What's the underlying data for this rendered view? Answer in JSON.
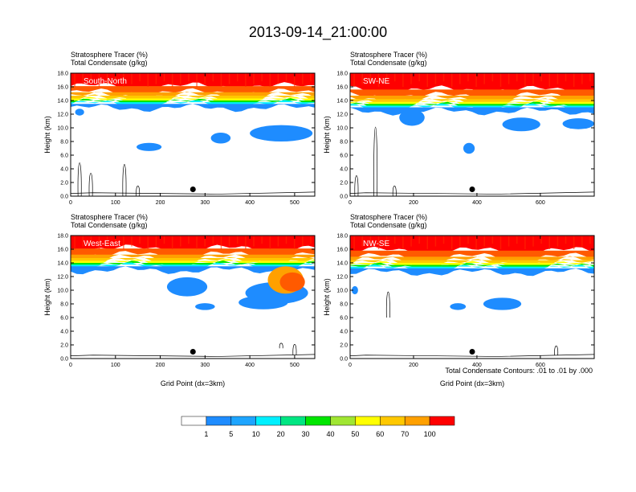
{
  "title": "2013-09-14_21:00:00",
  "chart_data": {
    "type": "filled-contour cross-sections",
    "panels": [
      {
        "id": "sn",
        "label": "South-North",
        "sub1": "Stratosphere Tracer   (%)",
        "sub2": "Total Condensate   (g/kg)",
        "xlim": [
          0,
          545
        ],
        "xticks": [
          "0",
          "100",
          "200",
          "300",
          "400",
          "500"
        ],
        "xtickvals": [
          0,
          100,
          200,
          300,
          400,
          500
        ],
        "ylim": [
          0,
          18
        ],
        "yticks": [
          "0.0",
          "2.0",
          "4.0",
          "6.0",
          "8.0",
          "10.0",
          "12.0",
          "14.0",
          "16.0",
          "18.0"
        ],
        "ylabel": "Height (km)",
        "xlabel": "",
        "marker_x": 273,
        "marker_y": 1.0,
        "trop_km": 13.5
      },
      {
        "id": "swne",
        "label": "SW-NE",
        "sub1": "Stratosphere Tracer   (%)",
        "sub2": "Total Condensate   (g/kg)",
        "xlim": [
          0,
          770
        ],
        "xticks": [
          "0",
          "200",
          "400",
          "600"
        ],
        "xtickvals": [
          0,
          200,
          400,
          600
        ],
        "ylim": [
          0,
          18
        ],
        "yticks": [
          "0.0",
          "2.0",
          "4.0",
          "6.0",
          "8.0",
          "10.0",
          "12.0",
          "14.0",
          "16.0",
          "18.0"
        ],
        "ylabel": "Height (km)",
        "xlabel": "",
        "marker_x": 385,
        "marker_y": 1.0,
        "trop_km": 13.0
      },
      {
        "id": "we",
        "label": "West-East",
        "sub1": "Stratosphere Tracer   (%)",
        "sub2": "Total Condensate   (g/kg)",
        "xlim": [
          0,
          545
        ],
        "xticks": [
          "0",
          "100",
          "200",
          "300",
          "400",
          "500"
        ],
        "xtickvals": [
          0,
          100,
          200,
          300,
          400,
          500
        ],
        "ylim": [
          0,
          18
        ],
        "yticks": [
          "0.0",
          "2.0",
          "4.0",
          "6.0",
          "8.0",
          "10.0",
          "12.0",
          "14.0",
          "16.0",
          "18.0"
        ],
        "ylabel": "Height (km)",
        "xlabel": "Grid Point (dx=3km)",
        "marker_x": 273,
        "marker_y": 1.0,
        "trop_km": 13.5
      },
      {
        "id": "nwse",
        "label": "NW-SE",
        "sub1": "Stratosphere Tracer   (%)",
        "sub2": "Total Condensate   (g/kg)",
        "xlim": [
          0,
          770
        ],
        "xticks": [
          "0",
          "200",
          "400",
          "600"
        ],
        "xtickvals": [
          0,
          200,
          400,
          600
        ],
        "ylim": [
          0,
          18
        ],
        "yticks": [
          "0.0",
          "2.0",
          "4.0",
          "6.0",
          "8.0",
          "10.0",
          "12.0",
          "14.0",
          "16.0",
          "18.0"
        ],
        "ylabel": "Height (km)",
        "xlabel": "Grid Point (dx=3km)",
        "marker_x": 385,
        "marker_y": 1.0,
        "trop_km": 13.2
      }
    ],
    "contour_note": "Total Condensate Contours: .01 to .01 by .000",
    "colorbar": {
      "levels": [
        "1",
        "5",
        "10",
        "20",
        "30",
        "40",
        "50",
        "60",
        "70",
        "100"
      ],
      "colors": [
        "#ffffff",
        "#1e8cff",
        "#1ea5ff",
        "#00f0ff",
        "#00e682",
        "#00e600",
        "#a0e632",
        "#ffff00",
        "#ffc800",
        "#ffa000",
        "#ff5a00",
        "#ff0000"
      ]
    }
  }
}
